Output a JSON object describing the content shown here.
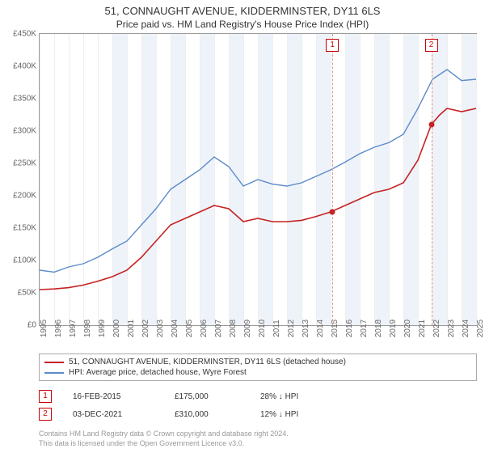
{
  "title_line1": "51, CONNAUGHT AVENUE, KIDDERMINSTER, DY11 6LS",
  "title_line2": "Price paid vs. HM Land Registry's House Price Index (HPI)",
  "chart": {
    "type": "line",
    "background_color": "#ffffff",
    "grid_color": "#eeeeee",
    "axis_color": "#999999",
    "text_color": "#666666",
    "label_fontsize": 10,
    "ylim": [
      0,
      450000
    ],
    "ytick_step": 50000,
    "y_labels": [
      "£0",
      "£50K",
      "£100K",
      "£150K",
      "£200K",
      "£250K",
      "£300K",
      "£350K",
      "£400K",
      "£450K"
    ],
    "xlim": [
      1995,
      2025
    ],
    "xtick_step": 1,
    "x_labels": [
      "1995",
      "1996",
      "1997",
      "1998",
      "1999",
      "2000",
      "2001",
      "2002",
      "2003",
      "2004",
      "2005",
      "2006",
      "2007",
      "2008",
      "2009",
      "2010",
      "2011",
      "2012",
      "2013",
      "2014",
      "2015",
      "2016",
      "2017",
      "2018",
      "2019",
      "2020",
      "2021",
      "2022",
      "2023",
      "2024",
      "2025"
    ],
    "shaded_bands": [
      {
        "from": 2000,
        "to": 2001,
        "color": "#eef3fa"
      },
      {
        "from": 2002,
        "to": 2003,
        "color": "#eef3fa"
      },
      {
        "from": 2004,
        "to": 2005,
        "color": "#eef3fa"
      },
      {
        "from": 2006,
        "to": 2007,
        "color": "#eef3fa"
      },
      {
        "from": 2008,
        "to": 2009,
        "color": "#eef3fa"
      },
      {
        "from": 2010,
        "to": 2011,
        "color": "#eef3fa"
      },
      {
        "from": 2012,
        "to": 2013,
        "color": "#eef3fa"
      },
      {
        "from": 2014,
        "to": 2015,
        "color": "#eef3fa"
      },
      {
        "from": 2016,
        "to": 2017,
        "color": "#eef3fa"
      },
      {
        "from": 2018,
        "to": 2019,
        "color": "#eef3fa"
      },
      {
        "from": 2020,
        "to": 2021,
        "color": "#eef3fa"
      },
      {
        "from": 2022,
        "to": 2023,
        "color": "#eef3fa"
      },
      {
        "from": 2024,
        "to": 2025,
        "color": "#eef3fa"
      }
    ],
    "series": [
      {
        "name": "51, CONNAUGHT AVENUE, KIDDERMINSTER, DY11 6LS (detached house)",
        "color": "#c62222",
        "line_width": 1.6,
        "data": [
          [
            1995,
            55000
          ],
          [
            1996,
            56000
          ],
          [
            1997,
            58000
          ],
          [
            1998,
            62000
          ],
          [
            1999,
            68000
          ],
          [
            2000,
            75000
          ],
          [
            2001,
            85000
          ],
          [
            2002,
            105000
          ],
          [
            2003,
            130000
          ],
          [
            2004,
            155000
          ],
          [
            2005,
            165000
          ],
          [
            2006,
            175000
          ],
          [
            2007,
            185000
          ],
          [
            2008,
            180000
          ],
          [
            2009,
            160000
          ],
          [
            2010,
            165000
          ],
          [
            2011,
            160000
          ],
          [
            2012,
            160000
          ],
          [
            2013,
            162000
          ],
          [
            2014,
            168000
          ],
          [
            2015,
            175000
          ],
          [
            2016,
            185000
          ],
          [
            2017,
            195000
          ],
          [
            2018,
            205000
          ],
          [
            2019,
            210000
          ],
          [
            2020,
            220000
          ],
          [
            2021,
            255000
          ],
          [
            2021.92,
            310000
          ],
          [
            2022.5,
            325000
          ],
          [
            2023,
            335000
          ],
          [
            2024,
            330000
          ],
          [
            2025,
            335000
          ]
        ]
      },
      {
        "name": "HPI: Average price, detached house, Wyre Forest",
        "color": "#5b8bc9",
        "line_width": 1.4,
        "data": [
          [
            1995,
            85000
          ],
          [
            1996,
            82000
          ],
          [
            1997,
            90000
          ],
          [
            1998,
            95000
          ],
          [
            1999,
            105000
          ],
          [
            2000,
            118000
          ],
          [
            2001,
            130000
          ],
          [
            2002,
            155000
          ],
          [
            2003,
            180000
          ],
          [
            2004,
            210000
          ],
          [
            2005,
            225000
          ],
          [
            2006,
            240000
          ],
          [
            2007,
            260000
          ],
          [
            2008,
            245000
          ],
          [
            2009,
            215000
          ],
          [
            2010,
            225000
          ],
          [
            2011,
            218000
          ],
          [
            2012,
            215000
          ],
          [
            2013,
            220000
          ],
          [
            2014,
            230000
          ],
          [
            2015,
            240000
          ],
          [
            2016,
            252000
          ],
          [
            2017,
            265000
          ],
          [
            2018,
            275000
          ],
          [
            2019,
            282000
          ],
          [
            2020,
            295000
          ],
          [
            2021,
            335000
          ],
          [
            2022,
            380000
          ],
          [
            2023,
            395000
          ],
          [
            2024,
            378000
          ],
          [
            2025,
            380000
          ]
        ]
      }
    ],
    "sale_markers": [
      {
        "n": "1",
        "x": 2015.12,
        "y": 175000
      },
      {
        "n": "2",
        "x": 2021.92,
        "y": 310000
      }
    ],
    "marker_line_color": "#d99999",
    "marker_box_border": "#cc0000",
    "marker_box_text": "#cc0000"
  },
  "legend": {
    "border_color": "#aaaaaa",
    "items": [
      {
        "label": "51, CONNAUGHT AVENUE, KIDDERMINSTER, DY11 6LS (detached house)",
        "color": "#c62222"
      },
      {
        "label": "HPI: Average price, detached house, Wyre Forest",
        "color": "#5b8bc9"
      }
    ]
  },
  "transactions": [
    {
      "n": "1",
      "date": "16-FEB-2015",
      "price": "£175,000",
      "diff": "28% ↓ HPI"
    },
    {
      "n": "2",
      "date": "03-DEC-2021",
      "price": "£310,000",
      "diff": "12% ↓ HPI"
    }
  ],
  "footnote_line1": "Contains HM Land Registry data © Crown copyright and database right 2024.",
  "footnote_line2": "This data is licensed under the Open Government Licence v3.0."
}
